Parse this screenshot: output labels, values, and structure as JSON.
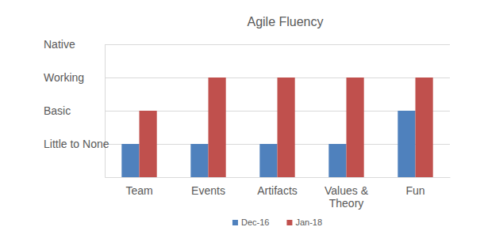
{
  "chart_data": {
    "type": "bar",
    "title": "Agile Fluency",
    "categories": [
      "Team",
      "Events",
      "Artifacts",
      "Values & Theory",
      "Fun"
    ],
    "series": [
      {
        "name": "Dec-16",
        "color": "#4f81bd",
        "values": [
          1,
          1,
          1,
          1,
          2
        ]
      },
      {
        "name": "Jan-18",
        "color": "#c0504d",
        "values": [
          2,
          3,
          3,
          3,
          3
        ]
      }
    ],
    "ylim": [
      0,
      4
    ],
    "yticks": [
      {
        "value": 1,
        "label": "Little to None"
      },
      {
        "value": 2,
        "label": "Basic"
      },
      {
        "value": 3,
        "label": "Working"
      },
      {
        "value": 4,
        "label": "Native"
      }
    ],
    "grid": true,
    "legend": "bottom"
  }
}
